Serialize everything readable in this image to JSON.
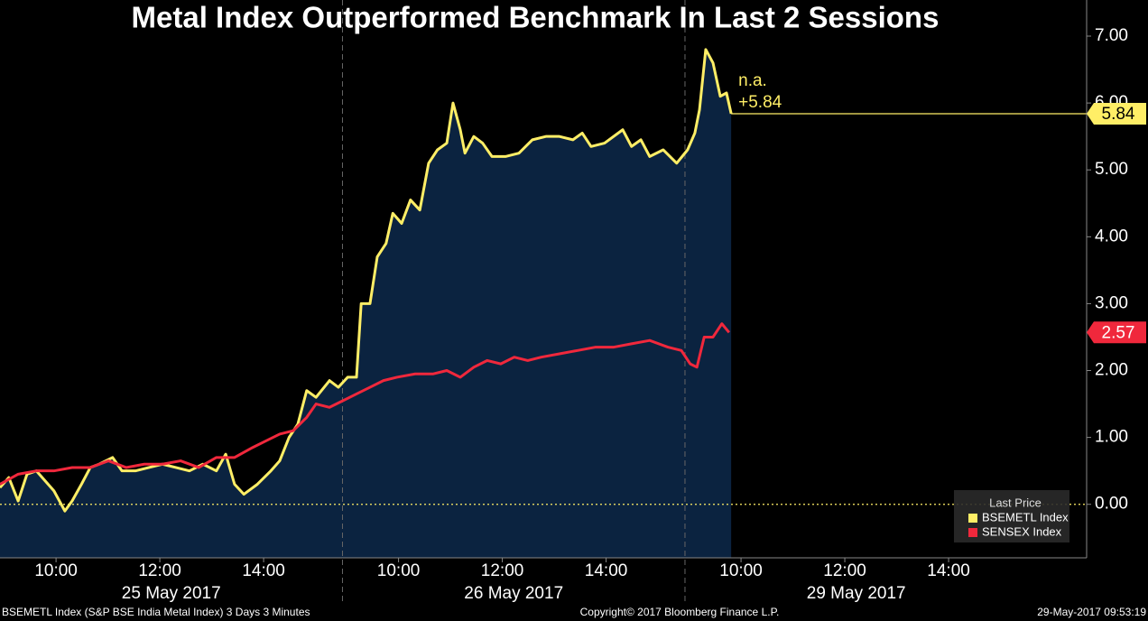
{
  "chart_data": {
    "type": "line",
    "title": "Metal Index Outperformed Benchmark In Last 2 Sessions",
    "annotations": [
      "n.a.",
      "+5.84"
    ],
    "legend_title": "Last Price",
    "legend": "bottom-right",
    "zero_line": true,
    "area_series": 0,
    "xlim": [
      0,
      20.94
    ],
    "xticks": [
      {
        "value": 1.08,
        "label": "10:00"
      },
      {
        "value": 3.08,
        "label": "12:00"
      },
      {
        "value": 5.08,
        "label": "14:00"
      },
      {
        "value": 7.68,
        "label": "10:00"
      },
      {
        "value": 9.68,
        "label": "12:00"
      },
      {
        "value": 11.68,
        "label": "14:00"
      },
      {
        "value": 14.28,
        "label": "10:00"
      },
      {
        "value": 16.28,
        "label": "12:00"
      },
      {
        "value": 18.28,
        "label": "14:00"
      }
    ],
    "sessions": [
      "25 May 2017",
      "26 May 2017",
      "29 May 2017"
    ],
    "session_bounds": [
      0,
      6.6,
      13.2,
      19.8
    ],
    "ylim": [
      -0.8,
      7.54
    ],
    "yticks": [
      {
        "value": 0,
        "label": "0.00"
      },
      {
        "value": 1,
        "label": "1.00"
      },
      {
        "value": 2,
        "label": "2.00"
      },
      {
        "value": 3,
        "label": "3.00"
      },
      {
        "value": 4,
        "label": "4.00"
      },
      {
        "value": 5,
        "label": "5.00"
      },
      {
        "value": 6,
        "label": "6.00"
      },
      {
        "value": 7,
        "label": "7.00"
      }
    ],
    "series": [
      {
        "name": "BSEMETL Index",
        "color": "#ffee66",
        "fill": "#0b2340",
        "x": [
          0,
          0.17,
          0.35,
          0.52,
          0.7,
          0.87,
          1.04,
          1.25,
          1.39,
          1.57,
          1.74,
          1.91,
          2.17,
          2.35,
          2.61,
          2.87,
          3.13,
          3.39,
          3.65,
          3.91,
          4.17,
          4.35,
          4.52,
          4.7,
          4.96,
          5.22,
          5.39,
          5.57,
          5.74,
          5.91,
          6.09,
          6.35,
          6.52,
          6.7,
          6.87,
          6.96,
          7.13,
          7.27,
          7.44,
          7.57,
          7.74,
          7.91,
          8.09,
          8.26,
          8.43,
          8.61,
          8.73,
          8.87,
          8.96,
          9.13,
          9.3,
          9.48,
          9.74,
          10.0,
          10.26,
          10.52,
          10.78,
          11.04,
          11.22,
          11.39,
          11.65,
          12.0,
          12.17,
          12.35,
          12.52,
          12.78,
          13.04,
          13.25,
          13.39,
          13.48,
          13.6,
          13.74,
          13.88,
          14.0,
          14.09
        ],
        "values": [
          0.25,
          0.4,
          0.05,
          0.45,
          0.5,
          0.35,
          0.2,
          -0.1,
          0.05,
          0.3,
          0.55,
          0.6,
          0.7,
          0.5,
          0.5,
          0.55,
          0.6,
          0.55,
          0.5,
          0.6,
          0.5,
          0.75,
          0.3,
          0.15,
          0.3,
          0.5,
          0.65,
          1.0,
          1.2,
          1.7,
          1.6,
          1.85,
          1.75,
          1.9,
          1.9,
          3.0,
          3.0,
          3.7,
          3.9,
          4.35,
          4.2,
          4.55,
          4.4,
          5.1,
          5.3,
          5.4,
          6.0,
          5.6,
          5.25,
          5.5,
          5.4,
          5.2,
          5.2,
          5.25,
          5.45,
          5.5,
          5.5,
          5.45,
          5.55,
          5.35,
          5.4,
          5.6,
          5.35,
          5.45,
          5.2,
          5.3,
          5.1,
          5.3,
          5.55,
          5.9,
          6.8,
          6.6,
          6.1,
          6.15,
          5.84
        ]
      },
      {
        "name": "SENSEX Index",
        "color": "#f0283c",
        "x": [
          0,
          0.35,
          0.7,
          1.04,
          1.39,
          1.74,
          2.09,
          2.43,
          2.78,
          3.13,
          3.48,
          3.83,
          4.17,
          4.52,
          4.87,
          5.13,
          5.39,
          5.65,
          5.91,
          6.09,
          6.35,
          6.61,
          6.87,
          7.13,
          7.39,
          7.65,
          8.0,
          8.35,
          8.61,
          8.87,
          9.13,
          9.39,
          9.65,
          9.91,
          10.17,
          10.43,
          10.78,
          11.13,
          11.48,
          11.83,
          12.17,
          12.52,
          12.87,
          13.13,
          13.3,
          13.43,
          13.57,
          13.74,
          13.91,
          14.05
        ],
        "values": [
          0.3,
          0.45,
          0.5,
          0.5,
          0.55,
          0.55,
          0.65,
          0.55,
          0.6,
          0.6,
          0.65,
          0.55,
          0.7,
          0.7,
          0.85,
          0.95,
          1.05,
          1.1,
          1.3,
          1.5,
          1.45,
          1.55,
          1.65,
          1.75,
          1.85,
          1.9,
          1.95,
          1.95,
          2.0,
          1.9,
          2.05,
          2.15,
          2.1,
          2.2,
          2.15,
          2.2,
          2.25,
          2.3,
          2.35,
          2.35,
          2.4,
          2.45,
          2.35,
          2.3,
          2.1,
          2.05,
          2.5,
          2.5,
          2.7,
          2.57
        ]
      }
    ],
    "footer": [
      "BSEMETL Index (S&P BSE India Metal Index) 3 Days 3 Minutes",
      "Copyright© 2017 Bloomberg Finance L.P.",
      "29-May-2017 09:53:19"
    ]
  }
}
